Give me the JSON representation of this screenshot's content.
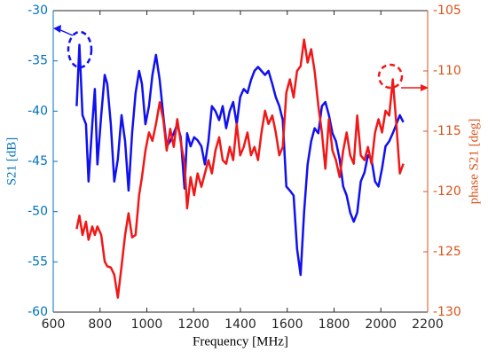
{
  "chart_data": {
    "type": "line",
    "xlabel": "Frequency [MHz]",
    "ylabel": "S21 [dB]",
    "y2label": "phase S21 [deg]",
    "xlim": [
      600,
      2200
    ],
    "xticks": [
      600,
      800,
      1000,
      1200,
      1400,
      1600,
      1800,
      2000,
      2200
    ],
    "ylim": [
      -60,
      -30
    ],
    "yticks": [
      -60,
      -55,
      -50,
      -45,
      -40,
      -35,
      -30
    ],
    "y2lim": [
      -130,
      -105
    ],
    "y2ticks": [
      -130,
      -125,
      -120,
      -115,
      -110,
      -105
    ],
    "y_axis_color": "#0072bd",
    "y2_axis_color": "#d95319",
    "x": [
      700,
      712,
      725,
      740,
      751,
      767,
      778,
      789,
      805,
      820,
      831,
      846,
      861,
      876,
      892,
      907,
      922,
      937,
      952,
      967,
      979,
      994,
      1009,
      1024,
      1039,
      1055,
      1070,
      1085,
      1100,
      1115,
      1130,
      1145,
      1161,
      1172,
      1187,
      1202,
      1217,
      1233,
      1248,
      1263,
      1278,
      1293,
      1309,
      1324,
      1339,
      1354,
      1369,
      1384,
      1399,
      1414,
      1430,
      1445,
      1460,
      1475,
      1490,
      1505,
      1520,
      1536,
      1551,
      1566,
      1581,
      1596,
      1611,
      1627,
      1642,
      1657,
      1672,
      1687,
      1702,
      1717,
      1733,
      1748,
      1763,
      1778,
      1793,
      1808,
      1824,
      1839,
      1854,
      1869,
      1884,
      1899,
      1914,
      1930,
      1945,
      1960,
      1975,
      1990,
      2005,
      2020,
      2036,
      2051,
      2066,
      2081,
      2096
    ],
    "series": [
      {
        "color": "#1010f0",
        "values": [
          -39.5,
          -33.4,
          -40.4,
          -41.3,
          -47,
          -41.3,
          -37.8,
          -45.3,
          -40.4,
          -36.4,
          -37.3,
          -41.3,
          -47,
          -44.8,
          -40.4,
          -43,
          -47.9,
          -42.2,
          -38.2,
          -36,
          -37.3,
          -41.3,
          -39.5,
          -36.4,
          -34.4,
          -36.9,
          -40.4,
          -43.5,
          -43,
          -42.2,
          -41.3,
          -42.6,
          -47.7,
          -42.2,
          -43.5,
          -42.6,
          -42.9,
          -43.5,
          -45.3,
          -43,
          -39.5,
          -40,
          -40.9,
          -39.5,
          -41.7,
          -40,
          -39.1,
          -41.3,
          -38.6,
          -37.8,
          -38.2,
          -36.9,
          -36,
          -35.6,
          -36,
          -36.4,
          -36,
          -37.3,
          -38.6,
          -39.5,
          -40.9,
          -47.5,
          -47.9,
          -48.4,
          -53.7,
          -56.3,
          -50.1,
          -45.3,
          -43,
          -41.7,
          -42.2,
          -39.5,
          -39.1,
          -40.4,
          -42.2,
          -43,
          -44.8,
          -47.5,
          -48.4,
          -50.1,
          -51,
          -50.1,
          -47,
          -46.1,
          -44.4,
          -44.8,
          -47,
          -47.5,
          -45.7,
          -43.5,
          -43,
          -42.2,
          -41.3,
          -40.4,
          -41.1
        ]
      },
      {
        "color": "#f01818",
        "axis": "y2",
        "values": [
          -123.1,
          -122,
          -123.6,
          -122.5,
          -124,
          -122.9,
          -123.6,
          -122.9,
          -123.6,
          -125.8,
          -126.2,
          -126.3,
          -126.9,
          -128.8,
          -126.2,
          -123.6,
          -121.8,
          -123.8,
          -123.6,
          -120.3,
          -118.8,
          -116.6,
          -115.1,
          -115.8,
          -114.4,
          -112.6,
          -114,
          -116.6,
          -114.8,
          -116.3,
          -114,
          -115.9,
          -117.7,
          -121.4,
          -118.8,
          -120.3,
          -118.5,
          -119.6,
          -118.5,
          -117.4,
          -118.5,
          -116.6,
          -115.5,
          -117.4,
          -117.7,
          -116.3,
          -117.4,
          -114.4,
          -117,
          -116.3,
          -115.1,
          -117,
          -116.3,
          -117.4,
          -115.1,
          -113.3,
          -114.4,
          -113.7,
          -115.1,
          -117,
          -116.3,
          -111.8,
          -110.7,
          -112.2,
          -110,
          -109.6,
          -107.4,
          -109.3,
          -108.2,
          -110,
          -112.9,
          -115.1,
          -118.1,
          -114,
          -116.6,
          -117.4,
          -118.8,
          -116.6,
          -115.1,
          -117,
          -117.7,
          -113.7,
          -117,
          -117.4,
          -116.3,
          -117.7,
          -115.1,
          -114,
          -115.1,
          -113.3,
          -113.7,
          -110.7,
          -114.4,
          -118.5,
          -117.7
        ]
      }
    ]
  }
}
